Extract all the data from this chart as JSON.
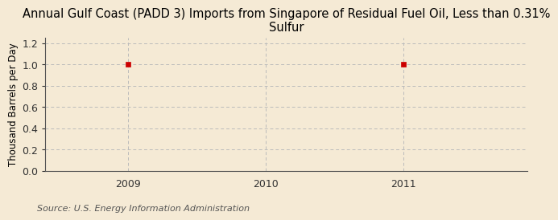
{
  "title": "Annual Gulf Coast (PADD 3) Imports from Singapore of Residual Fuel Oil, Less than 0.31%\nSulfur",
  "ylabel": "Thousand Barrels per Day",
  "source": "Source: U.S. Energy Information Administration",
  "data_x": [
    2009,
    2011
  ],
  "data_y": [
    1.0,
    1.0
  ],
  "xlim": [
    2008.4,
    2011.9
  ],
  "ylim": [
    0.0,
    1.25
  ],
  "yticks": [
    0.0,
    0.2,
    0.4,
    0.6,
    0.8,
    1.0,
    1.2
  ],
  "xticks": [
    2009,
    2010,
    2011
  ],
  "marker_color": "#cc0000",
  "bg_color": "#f5ead5",
  "grid_color": "#bbbbbb",
  "title_fontsize": 10.5,
  "label_fontsize": 8.5,
  "tick_fontsize": 9,
  "source_fontsize": 8
}
